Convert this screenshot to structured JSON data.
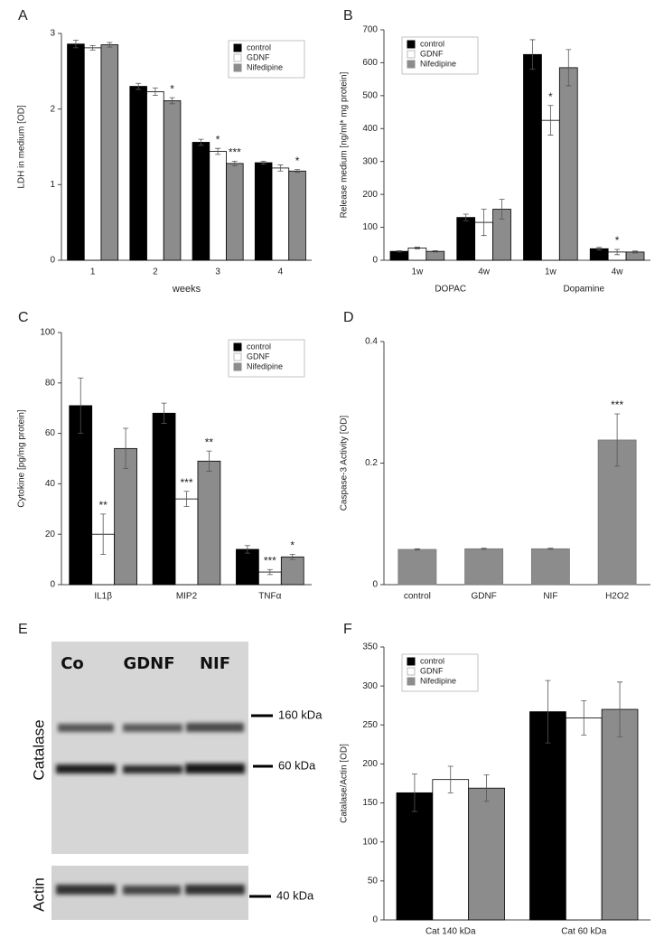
{
  "chart_data": [
    {
      "type": "bar",
      "panel": "A",
      "ylabel": "LDH in medium [OD]",
      "xlabel": "weeks",
      "categories": [
        "1",
        "2",
        "3",
        "4"
      ],
      "ylim": [
        0,
        3
      ],
      "yticks": [
        0,
        1,
        2,
        3
      ],
      "legend": "upper right",
      "series": [
        {
          "name": "control",
          "color": "#000000",
          "values": [
            2.86,
            2.3,
            1.56,
            1.29
          ],
          "errors": [
            0.05,
            0.04,
            0.04,
            0.02
          ],
          "significance": [
            null,
            null,
            null,
            null
          ]
        },
        {
          "name": "GDNF",
          "color": "#ffffff",
          "values": [
            2.81,
            2.23,
            1.44,
            1.22
          ],
          "errors": [
            0.03,
            0.05,
            0.04,
            0.04
          ],
          "significance": [
            null,
            null,
            "*",
            null
          ]
        },
        {
          "name": "Nifedipine",
          "color": "#8c8c8c",
          "values": [
            2.85,
            2.11,
            1.28,
            1.18
          ],
          "errors": [
            0.03,
            0.04,
            0.03,
            0.02
          ],
          "significance": [
            null,
            "*",
            "***",
            "*"
          ]
        }
      ]
    },
    {
      "type": "bar",
      "panel": "B",
      "ylabel": "Release medium [ng/ml* mg protein]",
      "categories": [
        "1w",
        "4w",
        "1w",
        "4w"
      ],
      "groups": [
        "DOPAC",
        "Dopamine"
      ],
      "ylim": [
        0,
        700
      ],
      "yticks": [
        0,
        100,
        200,
        300,
        400,
        500,
        600,
        700
      ],
      "legend": "upper left",
      "series": [
        {
          "name": "control",
          "color": "#000000",
          "values": [
            27,
            130,
            625,
            35
          ],
          "errors": [
            2,
            10,
            45,
            4
          ],
          "significance": [
            null,
            null,
            null,
            null
          ]
        },
        {
          "name": "GDNF",
          "color": "#ffffff",
          "values": [
            37,
            115,
            425,
            25
          ],
          "errors": [
            3,
            40,
            45,
            8
          ],
          "significance": [
            null,
            null,
            "*",
            "*"
          ]
        },
        {
          "name": "Nifedipine",
          "color": "#8c8c8c",
          "values": [
            27,
            155,
            585,
            25
          ],
          "errors": [
            2,
            30,
            55,
            3
          ],
          "significance": [
            null,
            null,
            null,
            null
          ]
        }
      ]
    },
    {
      "type": "bar",
      "panel": "C",
      "ylabel": "Cytokine [pg/mg protein]",
      "categories": [
        "IL1β",
        "MIP2",
        "TNFα"
      ],
      "ylim": [
        0,
        100
      ],
      "yticks": [
        0,
        20,
        40,
        60,
        80,
        100
      ],
      "legend": "upper right",
      "series": [
        {
          "name": "control",
          "color": "#000000",
          "values": [
            71,
            68,
            14
          ],
          "errors": [
            11,
            4,
            1.5
          ],
          "significance": [
            null,
            null,
            null
          ]
        },
        {
          "name": "GDNF",
          "color": "#ffffff",
          "values": [
            20,
            34,
            5
          ],
          "errors": [
            8,
            3,
            1
          ],
          "significance": [
            "**",
            "***",
            "***"
          ]
        },
        {
          "name": "Nifedipine",
          "color": "#8c8c8c",
          "values": [
            54,
            49,
            11
          ],
          "errors": [
            8,
            4,
            1
          ],
          "significance": [
            null,
            "**",
            "*"
          ]
        }
      ]
    },
    {
      "type": "bar",
      "panel": "D",
      "ylabel": "Caspase-3 Activity [OD]",
      "categories": [
        "control",
        "GDNF",
        "NIF",
        "H2O2"
      ],
      "ylim": [
        0,
        0.4
      ],
      "yticks": [
        0,
        0.2,
        0.4
      ],
      "color": "#8c8c8c",
      "values": [
        0.058,
        0.059,
        0.059,
        0.238
      ],
      "errors": [
        0.001,
        0.001,
        0.001,
        0.043
      ],
      "significance": [
        null,
        null,
        null,
        "***"
      ]
    },
    {
      "type": "bar",
      "panel": "F",
      "ylabel": "Catalase/Actin [OD]",
      "categories": [
        "Cat 140 kDa",
        "Cat 60 kDa"
      ],
      "ylim": [
        0,
        350
      ],
      "yticks": [
        0,
        50,
        100,
        150,
        200,
        250,
        300,
        350
      ],
      "legend": "upper left",
      "series": [
        {
          "name": "control",
          "color": "#000000",
          "values": [
            163,
            267
          ],
          "errors": [
            24,
            40
          ],
          "significance": [
            null,
            null
          ]
        },
        {
          "name": "GDNF",
          "color": "#ffffff",
          "values": [
            180,
            259
          ],
          "errors": [
            17,
            22
          ],
          "significance": [
            null,
            null
          ]
        },
        {
          "name": "Nifedipine",
          "color": "#8c8c8c",
          "values": [
            169,
            270
          ],
          "errors": [
            17,
            35
          ],
          "significance": [
            null,
            null
          ]
        }
      ]
    }
  ],
  "blot": {
    "panel": "E",
    "lanes": [
      "Co",
      "GDNF",
      "NIF"
    ],
    "rows": [
      "Catalase",
      "Actin"
    ],
    "markers": [
      "160 kDa",
      "60 kDa",
      "40 kDa"
    ]
  }
}
